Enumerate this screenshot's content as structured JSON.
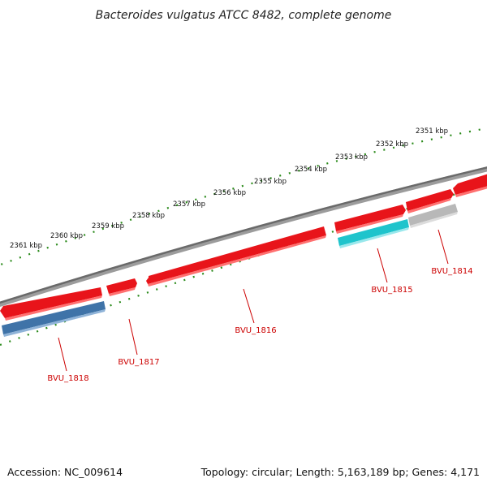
{
  "title": "Bacteroides vulgatus ATCC 8482, complete genome",
  "footer": {
    "accession": "Accession: NC_009614",
    "summary": "Topology: circular; Length: 5,163,189 bp; Genes: 4,171"
  },
  "colors": {
    "backbone": "#7a7a7a",
    "ticks": "#2a8a1a",
    "gene_red": "#e8141a",
    "gene_red_shade": "#ff6a6a",
    "label": "#cc0000",
    "blue": "#3f73a8",
    "cyan": "#1fc4cc",
    "gray": "#b8b8b8"
  },
  "kbp_labels": [
    "2361 kbp",
    "2360 kbp",
    "2359 kbp",
    "2358 kbp",
    "2357 kbp",
    "2356 kbp",
    "2355 kbp",
    "2354 kbp",
    "2353 kbp",
    "2352 kbp",
    "2351 kbp"
  ],
  "genes": [
    {
      "name": "BVU_1818",
      "strand": "reverse",
      "track": "blue"
    },
    {
      "name": "BVU_1817",
      "strand": "forward",
      "track": "none"
    },
    {
      "name": "BVU_1816",
      "strand": "reverse",
      "track": "none"
    },
    {
      "name": "BVU_1815",
      "strand": "forward",
      "track": "cyan"
    },
    {
      "name": "BVU_1814",
      "strand": "forward",
      "track": "gray"
    }
  ]
}
